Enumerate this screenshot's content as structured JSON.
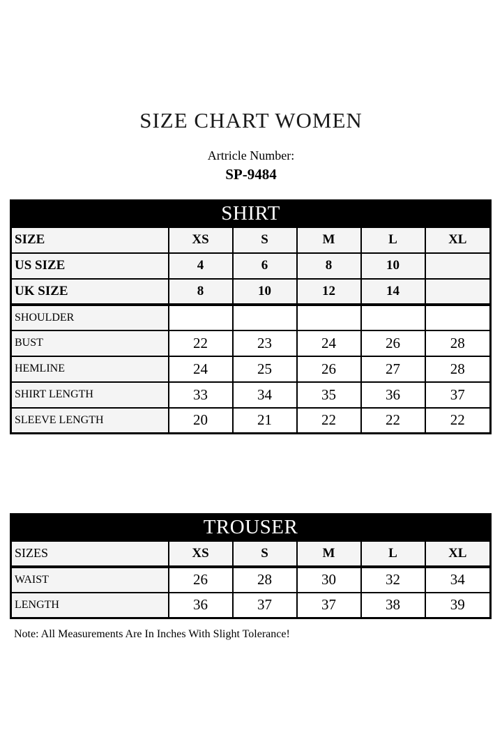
{
  "page": {
    "title": "SIZE CHART WOMEN",
    "article_label": "Artricle Number:",
    "article_number": "SP-9484",
    "note": "Note: All Measurements Are In Inches With Slight Tolerance!"
  },
  "colors": {
    "header_bg": "#000000",
    "header_text": "#ffffff",
    "shaded_cell": "#f4f4f4",
    "border": "#000000",
    "page_bg": "#ffffff"
  },
  "shirt_table": {
    "header": "SHIRT",
    "rows": [
      {
        "label": "SIZE",
        "style": "size_header",
        "values": [
          "XS",
          "S",
          "M",
          "L",
          "XL"
        ]
      },
      {
        "label": "US SIZE",
        "style": "size_header",
        "values": [
          "4",
          "6",
          "8",
          "10",
          ""
        ]
      },
      {
        "label": "UK SIZE",
        "style": "size_header",
        "values": [
          "8",
          "10",
          "12",
          "14",
          ""
        ]
      },
      {
        "label": "SHOULDER",
        "style": "data",
        "values": [
          "",
          "",
          "",
          "",
          ""
        ]
      },
      {
        "label": "BUST",
        "style": "data",
        "values": [
          "22",
          "23",
          "24",
          "26",
          "28"
        ]
      },
      {
        "label": "HEMLINE",
        "style": "data",
        "values": [
          "24",
          "25",
          "26",
          "27",
          "28"
        ]
      },
      {
        "label": "SHIRT LENGTH",
        "style": "data",
        "values": [
          "33",
          "34",
          "35",
          "36",
          "37"
        ]
      },
      {
        "label": "SLEEVE LENGTH",
        "style": "data",
        "values": [
          "20",
          "21",
          "22",
          "22",
          "22"
        ]
      }
    ]
  },
  "trouser_table": {
    "header": "TROUSER",
    "rows": [
      {
        "label": "SIZES",
        "style": "sizes_header",
        "values": [
          "XS",
          "S",
          "M",
          "L",
          "XL"
        ]
      },
      {
        "label": "WAIST",
        "style": "data",
        "values": [
          "26",
          "28",
          "30",
          "32",
          "34"
        ]
      },
      {
        "label": "LENGTH",
        "style": "data",
        "values": [
          "36",
          "37",
          "37",
          "38",
          "39"
        ]
      }
    ]
  }
}
